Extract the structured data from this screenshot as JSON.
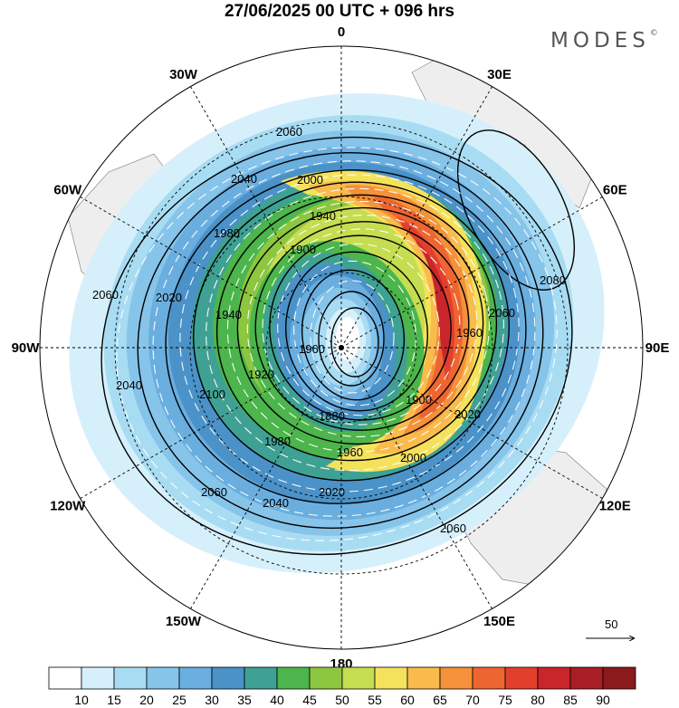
{
  "title": "27/06/2025  00 UTC  + 096 hrs",
  "brand": {
    "name": "MODES",
    "mark": "©"
  },
  "longitude_labels": [
    {
      "text": "0",
      "deg": 0
    },
    {
      "text": "30E",
      "deg": 30
    },
    {
      "text": "60E",
      "deg": 60
    },
    {
      "text": "90E",
      "deg": 90
    },
    {
      "text": "120E",
      "deg": 120
    },
    {
      "text": "150E",
      "deg": 150
    },
    {
      "text": "180",
      "deg": 180
    },
    {
      "text": "150W",
      "deg": 210
    },
    {
      "text": "120W",
      "deg": 240
    },
    {
      "text": "90W",
      "deg": 270
    },
    {
      "text": "60W",
      "deg": 300
    },
    {
      "text": "30W",
      "deg": 330
    }
  ],
  "contour_labels": [
    "2060",
    "2040",
    "2000",
    "1940",
    "1900",
    "1980",
    "2020",
    "1940",
    "1960",
    "1920",
    "2100",
    "1980",
    "1960",
    "2000",
    "1880",
    "1900",
    "2020",
    "1960",
    "2060",
    "2080",
    "2060",
    "2040",
    "2060",
    "2020",
    "2040",
    "2060"
  ],
  "reference_vector": {
    "value": "50"
  },
  "colorbar": {
    "colors": [
      "#ffffff",
      "#d6f0fb",
      "#a8dcf3",
      "#86c4ea",
      "#6aaedf",
      "#4a92c8",
      "#3fa193",
      "#4cb54c",
      "#8dc63f",
      "#c5dd50",
      "#f5e25c",
      "#f8bb4c",
      "#f4913a",
      "#ed6530",
      "#e2402d",
      "#c8262b",
      "#a91e25",
      "#8a1a1c"
    ],
    "tick_labels": [
      "10",
      "15",
      "20",
      "25",
      "30",
      "35",
      "40",
      "45",
      "50",
      "55",
      "60",
      "65",
      "70",
      "75",
      "80",
      "85",
      "90"
    ]
  }
}
